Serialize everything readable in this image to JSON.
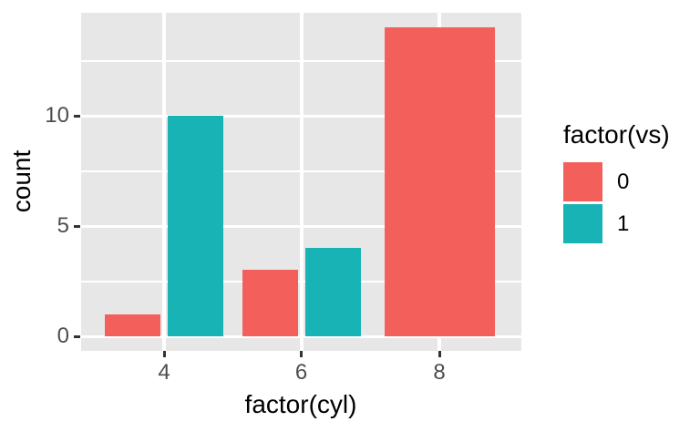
{
  "chart_data": {
    "type": "bar",
    "subtype": "dodged-vertical",
    "title": "",
    "xlabel": "factor(cyl)",
    "ylabel": "count",
    "categories": [
      "4",
      "6",
      "8"
    ],
    "series": [
      {
        "name": "0",
        "color": "#F3605C",
        "values": [
          1,
          3,
          14
        ]
      },
      {
        "name": "1",
        "color": "#18B3B5",
        "values": [
          10,
          4,
          0
        ]
      }
    ],
    "y_ticks": [
      0,
      5,
      10
    ],
    "y_minor_ticks": [
      2.5,
      7.5,
      12.5
    ],
    "ylim": [
      -0.7,
      14.7
    ],
    "grid": "white major+minor horizontal and major vertical gridlines on gray panel",
    "legend": {
      "title": "factor(vs)",
      "position": "right"
    },
    "theme": {
      "panel_bg": "#E7E7E7",
      "grid_color": "#FFFFFF",
      "tick_color": "#333333",
      "axis_text_color": "#4D4D4D",
      "axis_title_color": "#000000",
      "background": "#FFFFFF"
    }
  }
}
